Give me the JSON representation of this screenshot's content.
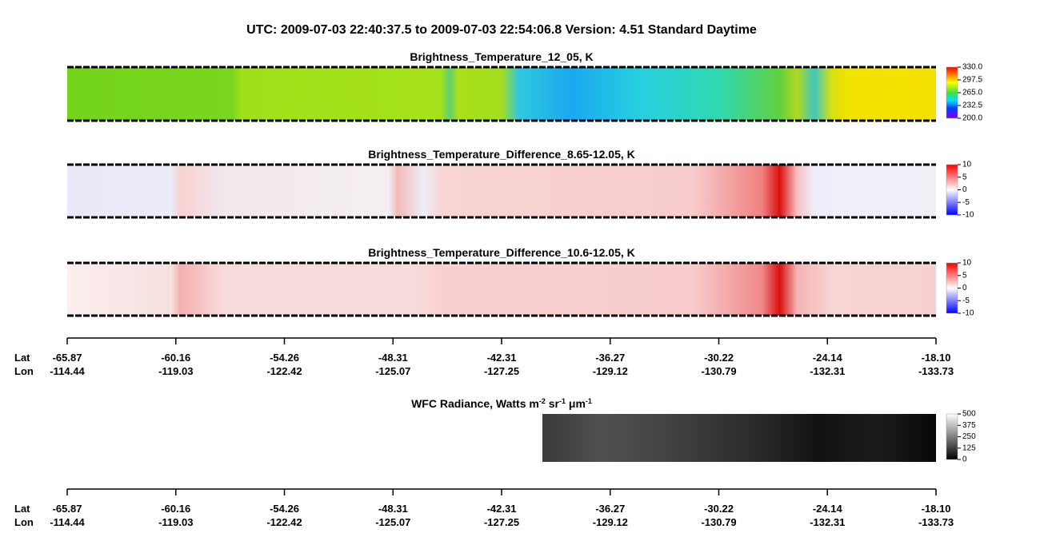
{
  "title": "UTC:  2009-07-03   22:40:37.5  to  2009-07-03   22:54:06.8    Version: 4.51  Standard Daytime",
  "panels": [
    {
      "title": "Brightness_Temperature_12_05, K",
      "colorbar": {
        "lim": [
          200,
          330
        ],
        "ticks": [
          {
            "value": 330,
            "label": "330.0"
          },
          {
            "value": 297.5,
            "label": "297.5"
          },
          {
            "value": 265,
            "label": "265.0"
          },
          {
            "value": 232.5,
            "label": "232.5"
          },
          {
            "value": 200,
            "label": "200.0"
          }
        ]
      }
    },
    {
      "title": "Brightness_Temperature_Difference_8.65-12.05, K",
      "colorbar": {
        "lim": [
          -10,
          10
        ],
        "ticks": [
          10,
          5,
          0,
          -5,
          -10
        ]
      }
    },
    {
      "title": "Brightness_Temperature_Difference_10.6-12.05, K",
      "colorbar": {
        "lim": [
          -10,
          10
        ],
        "ticks": [
          10,
          5,
          0,
          -5,
          -10
        ]
      }
    },
    {
      "title_parts": [
        "WFC Radiance, Watts m",
        "-2",
        " sr",
        "-1",
        " μm",
        "-1"
      ],
      "colorbar": {
        "lim": [
          0,
          500
        ],
        "ticks": [
          500,
          375,
          250,
          125,
          0
        ]
      }
    }
  ],
  "axis": {
    "row_labels": [
      "Lat",
      "Lon"
    ],
    "lat": [
      "-65.87",
      "-60.16",
      "-54.26",
      "-48.31",
      "-42.31",
      "-36.27",
      "-30.22",
      "-24.14",
      "-18.10"
    ],
    "lon": [
      "-114.44",
      "-119.03",
      "-122.42",
      "-125.07",
      "-127.25",
      "-129.12",
      "-130.79",
      "-132.31",
      "-133.73"
    ]
  }
}
